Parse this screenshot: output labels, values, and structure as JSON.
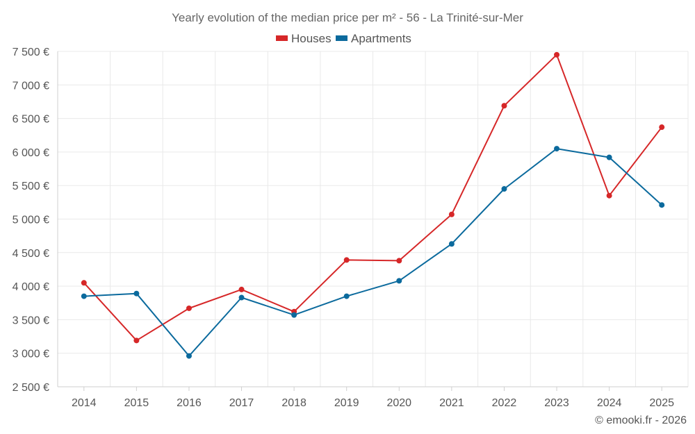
{
  "chart_data": {
    "type": "line",
    "title": "Yearly evolution of the median price per m² - 56 - La Trinité-sur-Mer",
    "categories": [
      "2014",
      "2015",
      "2016",
      "2017",
      "2018",
      "2019",
      "2020",
      "2021",
      "2022",
      "2023",
      "2024",
      "2025"
    ],
    "series": [
      {
        "name": "Houses",
        "color": "#d62728",
        "values": [
          4050,
          3190,
          3670,
          3950,
          3620,
          4390,
          4380,
          5070,
          6690,
          7450,
          5350,
          6370
        ]
      },
      {
        "name": "Apartments",
        "color": "#0b6a9d",
        "values": [
          3850,
          3890,
          2960,
          3830,
          3570,
          3850,
          4080,
          4630,
          5450,
          6050,
          5920,
          5210
        ]
      }
    ],
    "ylim": [
      2500,
      7500
    ],
    "yticks": [
      2500,
      3000,
      3500,
      4000,
      4500,
      5000,
      5500,
      6000,
      6500,
      7000,
      7500
    ],
    "ytick_labels": [
      "2 500 €",
      "3 000 €",
      "3 500 €",
      "4 000 €",
      "4 500 €",
      "5 000 €",
      "5 500 €",
      "6 000 €",
      "6 500 €",
      "7 000 €",
      "7 500 €"
    ],
    "xlabel": "",
    "ylabel": "",
    "grid": true,
    "legend_position": "top-center"
  },
  "credit": "© emooki.fr - 2026"
}
